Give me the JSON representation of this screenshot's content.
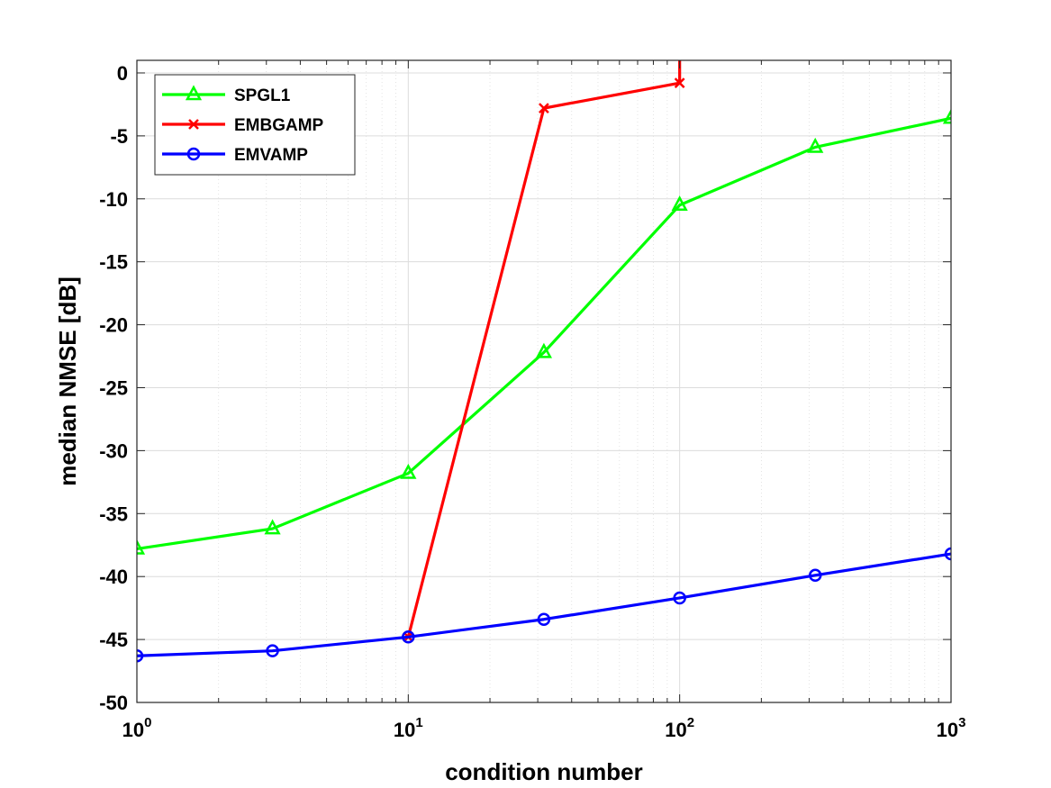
{
  "chart_data": {
    "type": "line",
    "title": "",
    "xlabel": "condition number",
    "ylabel": "median NMSE [dB]",
    "xscale": "log",
    "xlim": [
      1,
      1000
    ],
    "ylim": [
      -50,
      1
    ],
    "grid": true,
    "minor_grid": true,
    "legend_position": "top-left",
    "x_ticks": [
      {
        "value": 1,
        "base": "10",
        "exp": "0"
      },
      {
        "value": 10,
        "base": "10",
        "exp": "1"
      },
      {
        "value": 100,
        "base": "10",
        "exp": "2"
      },
      {
        "value": 1000,
        "base": "10",
        "exp": "3"
      }
    ],
    "y_ticks": [
      0,
      -5,
      -10,
      -15,
      -20,
      -25,
      -30,
      -35,
      -40,
      -45,
      -50
    ],
    "y_tick_labels": [
      "0",
      "-5",
      "-10",
      "-15",
      "-20",
      "-25",
      "-30",
      "-35",
      "-40",
      "-45",
      "-50"
    ],
    "series": [
      {
        "name": "SPGL1",
        "color": "#00ff00",
        "marker": "triangle",
        "x": [
          1,
          3.16,
          10,
          31.6,
          100,
          316,
          1000
        ],
        "values": [
          -37.8,
          -36.2,
          -31.8,
          -22.2,
          -10.5,
          -5.9,
          -3.6
        ]
      },
      {
        "name": "EMBGAMP",
        "color": "#ff0000",
        "marker": "x",
        "x": [
          10,
          31.6,
          100
        ],
        "values": [
          -44.8,
          -2.8,
          -0.8
        ],
        "continues_above_axis_after": 100
      },
      {
        "name": "EMVAMP",
        "color": "#0000ff",
        "marker": "circle",
        "x": [
          1,
          3.16,
          10,
          31.6,
          100,
          316,
          1000
        ],
        "values": [
          -46.3,
          -45.9,
          -44.8,
          -43.4,
          -41.7,
          -39.9,
          -38.2
        ]
      }
    ]
  }
}
